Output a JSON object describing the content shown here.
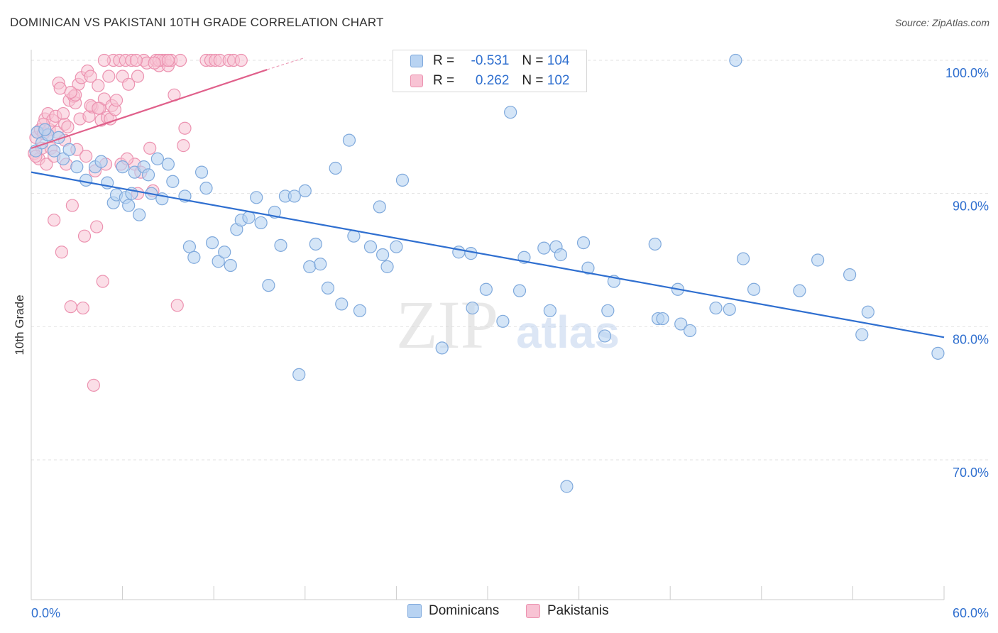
{
  "title": "DOMINICAN VS PAKISTANI 10TH GRADE CORRELATION CHART",
  "source": "Source: ZipAtlas.com",
  "watermark": {
    "zip": "ZIP",
    "atlas": "atlas"
  },
  "colors": {
    "dominican_fill": "#b8d3f2",
    "dominican_stroke": "#7fa9dc",
    "dominican_line": "#2f6fd0",
    "pakistani_fill": "#f8c3d4",
    "pakistani_stroke": "#ec92b0",
    "pakistani_line": "#e0608b",
    "tick_label": "#2f6fcf",
    "grid": "#e2e2e2"
  },
  "legend": {
    "rows": [
      {
        "r_label": "R =",
        "r_value": "-0.531",
        "n_label": "N =",
        "n_value": "104"
      },
      {
        "r_label": "R =",
        "r_value": "0.262",
        "n_label": "N =",
        "n_value": "102"
      }
    ]
  },
  "bottom_legend": [
    "Dominicans",
    "Pakistanis"
  ],
  "chart_data": {
    "type": "scatter",
    "title": "DOMINICAN VS PAKISTANI 10TH GRADE CORRELATION CHART",
    "xlabel": "",
    "ylabel": "10th Grade",
    "xlim": [
      0,
      60
    ],
    "ylim": [
      59.5,
      100.8
    ],
    "x_tick_labels": [
      "0.0%",
      "60.0%"
    ],
    "y_ticks": [
      70,
      80,
      90,
      100
    ],
    "y_tick_labels": [
      "70.0%",
      "80.0%",
      "90.0%",
      "100.0%"
    ],
    "grid": "horizontal dashed",
    "legend_position": "top-center",
    "series": [
      {
        "name": "Dominicans",
        "R": -0.531,
        "N": 104,
        "trend": {
          "x": [
            0,
            60
          ],
          "y": [
            91.6,
            79.2
          ]
        },
        "points": [
          [
            0.3,
            93.2
          ],
          [
            0.4,
            94.6
          ],
          [
            0.7,
            93.8
          ],
          [
            1.1,
            94.4
          ],
          [
            1.5,
            93.2
          ],
          [
            2.1,
            92.6
          ],
          [
            2.5,
            93.3
          ],
          [
            3.0,
            92.0
          ],
          [
            3.6,
            91.0
          ],
          [
            4.2,
            92.0
          ],
          [
            4.6,
            92.4
          ],
          [
            5.0,
            90.8
          ],
          [
            5.4,
            89.3
          ],
          [
            5.6,
            89.9
          ],
          [
            6.0,
            92.0
          ],
          [
            6.2,
            89.7
          ],
          [
            6.4,
            89.1
          ],
          [
            6.8,
            91.6
          ],
          [
            7.1,
            88.4
          ],
          [
            7.4,
            92.0
          ],
          [
            7.7,
            91.4
          ],
          [
            7.9,
            90.0
          ],
          [
            8.3,
            92.6
          ],
          [
            8.6,
            89.6
          ],
          [
            9.0,
            92.2
          ],
          [
            9.3,
            90.9
          ],
          [
            10.1,
            89.8
          ],
          [
            10.4,
            86.0
          ],
          [
            10.7,
            85.2
          ],
          [
            11.2,
            91.6
          ],
          [
            11.5,
            90.4
          ],
          [
            11.9,
            86.3
          ],
          [
            12.3,
            84.9
          ],
          [
            12.7,
            85.6
          ],
          [
            13.1,
            84.6
          ],
          [
            13.5,
            87.3
          ],
          [
            13.8,
            88.0
          ],
          [
            14.3,
            88.2
          ],
          [
            14.8,
            89.7
          ],
          [
            15.1,
            87.8
          ],
          [
            15.6,
            83.1
          ],
          [
            16.0,
            88.6
          ],
          [
            16.4,
            86.1
          ],
          [
            16.7,
            89.8
          ],
          [
            17.3,
            89.8
          ],
          [
            17.6,
            76.4
          ],
          [
            18.0,
            90.2
          ],
          [
            18.3,
            84.5
          ],
          [
            18.7,
            86.2
          ],
          [
            19.0,
            84.7
          ],
          [
            19.5,
            82.9
          ],
          [
            20.0,
            91.9
          ],
          [
            20.4,
            81.7
          ],
          [
            20.9,
            94.0
          ],
          [
            21.2,
            86.8
          ],
          [
            21.6,
            81.2
          ],
          [
            22.3,
            86.0
          ],
          [
            22.9,
            89.0
          ],
          [
            23.1,
            85.4
          ],
          [
            23.4,
            84.5
          ],
          [
            24.0,
            86.0
          ],
          [
            24.4,
            91.0
          ],
          [
            25.0,
            100.0
          ],
          [
            26.2,
            100.0
          ],
          [
            27.0,
            78.4
          ],
          [
            28.1,
            85.6
          ],
          [
            28.9,
            85.5
          ],
          [
            29.0,
            81.4
          ],
          [
            29.9,
            82.8
          ],
          [
            31.0,
            80.4
          ],
          [
            31.5,
            96.1
          ],
          [
            32.1,
            82.7
          ],
          [
            32.4,
            85.2
          ],
          [
            33.7,
            85.9
          ],
          [
            34.1,
            81.2
          ],
          [
            34.5,
            86.0
          ],
          [
            34.8,
            85.4
          ],
          [
            35.2,
            68.0
          ],
          [
            35.7,
            100.0
          ],
          [
            36.3,
            86.3
          ],
          [
            36.6,
            84.4
          ],
          [
            37.7,
            79.3
          ],
          [
            37.9,
            81.2
          ],
          [
            38.3,
            83.4
          ],
          [
            41.0,
            86.2
          ],
          [
            41.2,
            80.6
          ],
          [
            41.5,
            80.6
          ],
          [
            42.5,
            82.8
          ],
          [
            42.7,
            80.2
          ],
          [
            43.3,
            79.7
          ],
          [
            45.0,
            81.4
          ],
          [
            45.9,
            81.3
          ],
          [
            46.3,
            100.0
          ],
          [
            46.8,
            85.1
          ],
          [
            47.5,
            82.8
          ],
          [
            50.5,
            82.7
          ],
          [
            51.7,
            85.0
          ],
          [
            53.8,
            83.9
          ],
          [
            54.6,
            79.4
          ],
          [
            55.0,
            81.1
          ],
          [
            59.6,
            78.0
          ],
          [
            0.9,
            94.8
          ],
          [
            1.8,
            94.2
          ],
          [
            6.6,
            90.0
          ]
        ]
      },
      {
        "name": "Pakistanis",
        "R": 0.262,
        "N": 102,
        "trend": {
          "x": [
            0,
            15.5
          ],
          "y": [
            93.4,
            99.3
          ]
        },
        "trend_dashed": {
          "x": [
            15.5,
            18.0
          ],
          "y": [
            99.3,
            100.2
          ]
        },
        "points": [
          [
            0.2,
            93.0
          ],
          [
            0.3,
            94.2
          ],
          [
            0.4,
            94.6
          ],
          [
            0.5,
            92.6
          ],
          [
            0.6,
            94.8
          ],
          [
            0.7,
            93.4
          ],
          [
            0.8,
            94.5
          ],
          [
            0.9,
            95.6
          ],
          [
            1.0,
            92.2
          ],
          [
            1.1,
            96.0
          ],
          [
            1.2,
            94.8
          ],
          [
            1.3,
            93.4
          ],
          [
            1.4,
            95.5
          ],
          [
            1.5,
            88.0
          ],
          [
            1.6,
            95.8
          ],
          [
            1.7,
            94.6
          ],
          [
            1.8,
            98.3
          ],
          [
            1.9,
            97.9
          ],
          [
            2.0,
            85.6
          ],
          [
            2.1,
            96.0
          ],
          [
            2.2,
            95.2
          ],
          [
            2.3,
            92.2
          ],
          [
            2.4,
            95.0
          ],
          [
            2.5,
            97.0
          ],
          [
            2.6,
            81.5
          ],
          [
            2.7,
            89.1
          ],
          [
            2.8,
            97.3
          ],
          [
            2.9,
            96.8
          ],
          [
            3.0,
            93.3
          ],
          [
            3.1,
            98.2
          ],
          [
            3.2,
            95.6
          ],
          [
            3.3,
            98.7
          ],
          [
            3.4,
            81.4
          ],
          [
            3.5,
            86.8
          ],
          [
            3.6,
            92.8
          ],
          [
            3.7,
            99.2
          ],
          [
            3.8,
            95.8
          ],
          [
            3.9,
            98.8
          ],
          [
            4.0,
            96.5
          ],
          [
            4.1,
            75.6
          ],
          [
            4.2,
            91.7
          ],
          [
            4.3,
            87.5
          ],
          [
            4.4,
            98.1
          ],
          [
            4.5,
            96.4
          ],
          [
            4.6,
            95.5
          ],
          [
            4.7,
            83.4
          ],
          [
            4.8,
            97.1
          ],
          [
            4.9,
            92.2
          ],
          [
            5.0,
            95.7
          ],
          [
            5.1,
            98.8
          ],
          [
            5.2,
            95.6
          ],
          [
            5.3,
            96.6
          ],
          [
            5.4,
            100.0
          ],
          [
            5.5,
            96.3
          ],
          [
            5.6,
            97.0
          ],
          [
            5.8,
            100.0
          ],
          [
            6.0,
            98.8
          ],
          [
            6.2,
            100.0
          ],
          [
            6.4,
            98.2
          ],
          [
            6.6,
            100.0
          ],
          [
            6.8,
            92.2
          ],
          [
            7.0,
            98.8
          ],
          [
            7.2,
            91.6
          ],
          [
            7.4,
            100.0
          ],
          [
            7.6,
            99.8
          ],
          [
            7.8,
            93.4
          ],
          [
            8.0,
            90.2
          ],
          [
            8.2,
            100.0
          ],
          [
            8.4,
            99.6
          ],
          [
            8.6,
            100.0
          ],
          [
            8.8,
            100.0
          ],
          [
            9.0,
            99.6
          ],
          [
            9.2,
            100.0
          ],
          [
            9.4,
            97.4
          ],
          [
            9.6,
            81.6
          ],
          [
            9.8,
            100.0
          ],
          [
            10.0,
            93.6
          ],
          [
            10.1,
            94.9
          ],
          [
            11.5,
            100.0
          ],
          [
            11.8,
            100.0
          ],
          [
            12.1,
            100.0
          ],
          [
            12.4,
            100.0
          ],
          [
            13.0,
            100.0
          ],
          [
            13.3,
            100.0
          ],
          [
            13.8,
            100.0
          ],
          [
            0.3,
            92.8
          ],
          [
            1.1,
            94.4
          ],
          [
            2.9,
            97.4
          ],
          [
            4.8,
            100.0
          ],
          [
            5.9,
            92.2
          ],
          [
            6.3,
            92.6
          ],
          [
            7.0,
            90.0
          ],
          [
            8.4,
            100.0
          ],
          [
            9.0,
            100.0
          ],
          [
            3.9,
            96.6
          ],
          [
            1.5,
            92.8
          ],
          [
            0.8,
            95.2
          ],
          [
            2.2,
            94.0
          ],
          [
            6.9,
            100.0
          ],
          [
            8.1,
            99.8
          ],
          [
            4.4,
            96.4
          ],
          [
            2.6,
            97.6
          ]
        ]
      }
    ]
  }
}
